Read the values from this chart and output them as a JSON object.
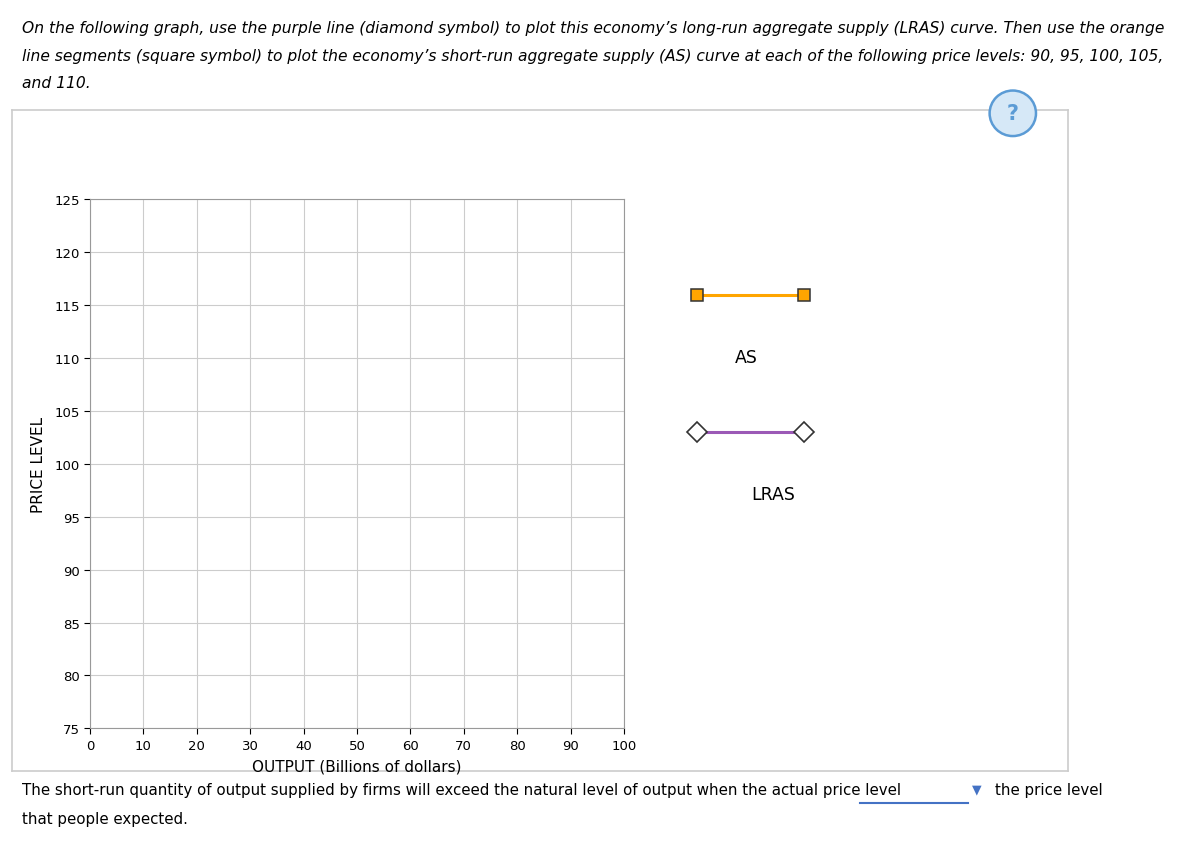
{
  "title_line1": "On the following graph, use the purple line (diamond symbol) to plot this economy’s long-run aggregate supply (LRAS) curve. Then use the orange",
  "title_line2": "line segments (square symbol) to plot the economy’s short-run aggregate supply (AS) curve at each of the following price levels: 90, 95, 100, 105,",
  "title_line3": "and 110.",
  "ylabel": "PRICE LEVEL",
  "xlabel": "OUTPUT (Billions of dollars)",
  "xlim": [
    0,
    100
  ],
  "ylim": [
    75,
    125
  ],
  "xticks": [
    0,
    10,
    20,
    30,
    40,
    50,
    60,
    70,
    80,
    90,
    100
  ],
  "yticks": [
    75,
    80,
    85,
    90,
    95,
    100,
    105,
    110,
    115,
    120,
    125
  ],
  "grid_color": "#cccccc",
  "grid_linewidth": 0.8,
  "ax_bg": "#ffffff",
  "fig_bg": "#ffffff",
  "as_color": "#FFA500",
  "lras_color": "#9B59B6",
  "as_label": "AS",
  "lras_label": "LRAS",
  "bottom_text": "The short-run quantity of output supplied by firms will exceed the natural level of output when the actual price level",
  "bottom_text2": "that people expected.",
  "dropdown_label": "the price level"
}
